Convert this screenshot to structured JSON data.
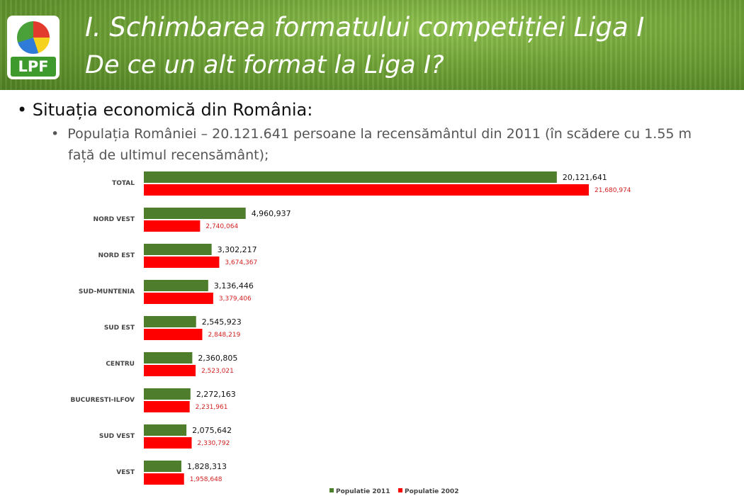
{
  "header": {
    "logo_text": "LPF",
    "title": "I. Schimbarea formatului competiției Liga I",
    "subtitle": "De ce un alt format la Liga I?"
  },
  "content": {
    "bullet1": "Situația economică din România:",
    "bullet2_line1": "Populația României – 20.121.641 persoane la recensământul din 2011 (în scădere cu 1.55 m",
    "bullet2_line2": "față de ultimul recensământ);"
  },
  "colors": {
    "series_2011": "#4e7d2c",
    "series_2002": "#ff0000",
    "label_2002": "#d42020"
  },
  "chart_data": {
    "type": "bar",
    "orientation": "horizontal",
    "categories": [
      "TOTAL",
      "NORD VEST",
      "NORD EST",
      "SUD-MUNTENIA",
      "SUD EST",
      "CENTRU",
      "BUCURESTI-ILFOV",
      "SUD VEST",
      "VEST"
    ],
    "series": [
      {
        "name": "Populatie 2011",
        "values": [
          20121641,
          4960937,
          3302217,
          3136446,
          2545923,
          2360805,
          2272163,
          2075642,
          1828313
        ],
        "labels": [
          "20,121,641",
          "4,960,937",
          "3,302,217",
          "3,136,446",
          "2,545,923",
          "2,360,805",
          "2,272,163",
          "2,075,642",
          "1,828,313"
        ]
      },
      {
        "name": "Populatie 2002",
        "values": [
          21680974,
          2740064,
          3674367,
          3379406,
          2848219,
          2523021,
          2231961,
          2330792,
          1958648
        ],
        "labels": [
          "21,680,974",
          "2,740,064",
          "3,674,367",
          "3,379,406",
          "2,848,219",
          "2,523,021",
          "2,231,961",
          "2,330,792",
          "1,958,648"
        ]
      }
    ],
    "legend": "bottom",
    "grid": false
  }
}
